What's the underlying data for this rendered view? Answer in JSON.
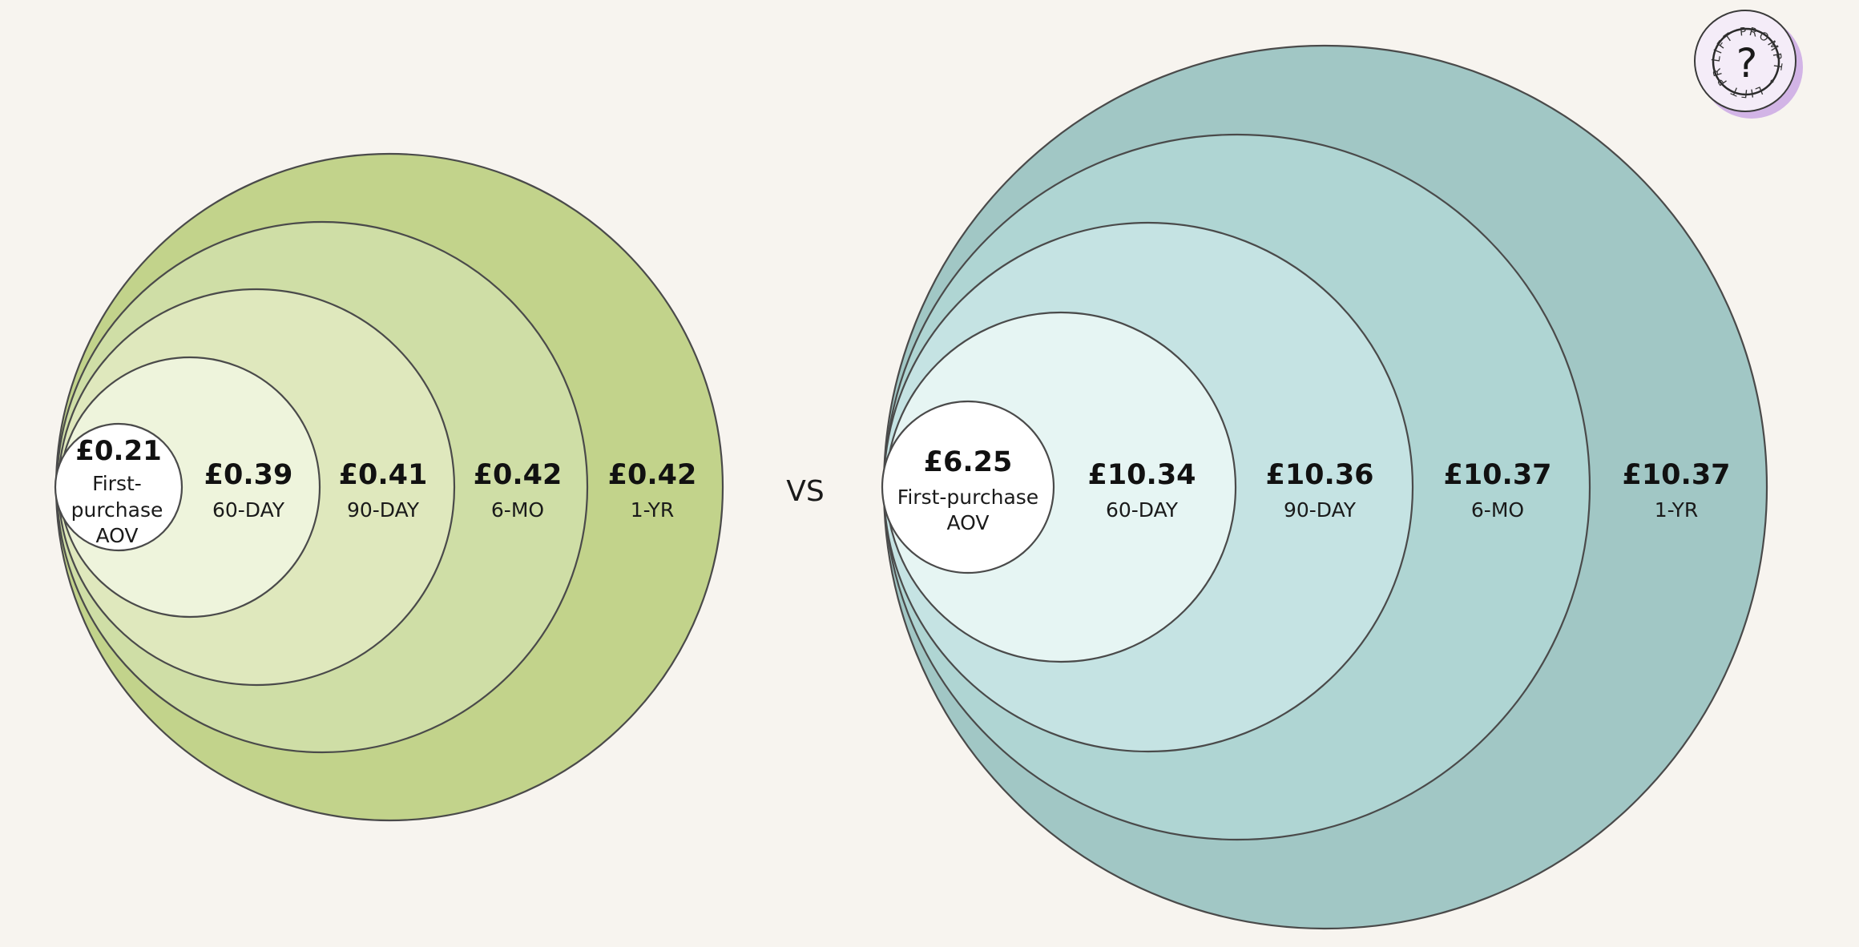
{
  "diagrams": [
    {
      "id": "left",
      "colors": [
        "#ffffff",
        "#eef4dc",
        "#dfe8bd",
        "#cfdea6",
        "#c2d38b"
      ],
      "rings": [
        {
          "value": "£0.21",
          "label_lines": [
            "First-",
            "purchase",
            "AOV"
          ]
        },
        {
          "value": "£0.39",
          "label_lines": [
            "60-DAY"
          ]
        },
        {
          "value": "£0.41",
          "label_lines": [
            "90-DAY"
          ]
        },
        {
          "value": "£0.42",
          "label_lines": [
            "6-MO"
          ]
        },
        {
          "value": "£0.42",
          "label_lines": [
            "1-YR"
          ]
        }
      ]
    },
    {
      "id": "right",
      "colors": [
        "#ffffff",
        "#e6f5f3",
        "#c5e3e3",
        "#afd5d3",
        "#a1c7c5"
      ],
      "rings": [
        {
          "value": "£6.25",
          "label_lines": [
            "First-purchase",
            "AOV"
          ]
        },
        {
          "value": "£10.34",
          "label_lines": [
            "60-DAY"
          ]
        },
        {
          "value": "£10.36",
          "label_lines": [
            "90-DAY"
          ]
        },
        {
          "value": "£10.37",
          "label_lines": [
            "6-MO"
          ]
        },
        {
          "value": "£10.37",
          "label_lines": [
            "1-YR"
          ]
        }
      ]
    }
  ],
  "separator_text": "VS",
  "badge": {
    "ring_text": "LIFT PROMPT • LIFT PROMPT •",
    "icon": "question-mark-icon",
    "glyph": "?",
    "fill": "#f4ecf8",
    "ring_color": "#d9bde8",
    "shadow_color": "#d2b4e6"
  }
}
